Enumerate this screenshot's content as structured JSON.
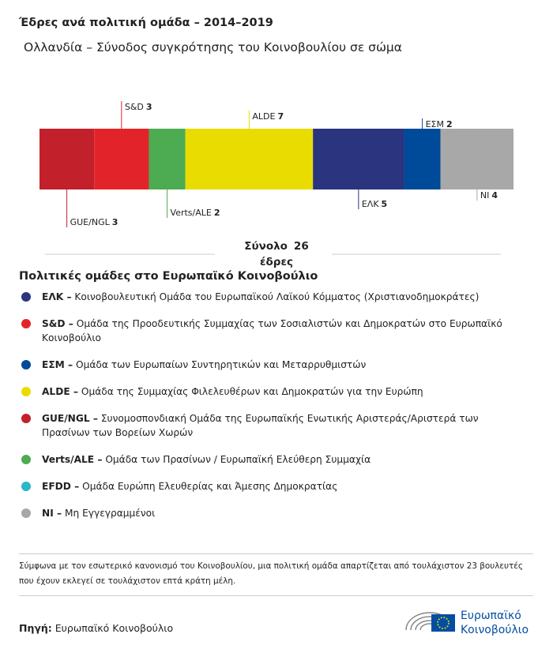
{
  "chart_data": {
    "type": "stacked-bar",
    "title": "Έδρες ανά πολιτική ομάδα – 2014–2019",
    "subtitle": "Ολλανδία – Σύνοδος συγκρότησης του Κοινοβουλίου σε σώμα",
    "categories": [
      "GUE/NGL",
      "S&D",
      "Verts/ALE",
      "ALDE",
      "ΕΛΚ",
      "ΕΣΜ",
      "NI"
    ],
    "values": [
      3,
      3,
      2,
      7,
      5,
      2,
      4
    ],
    "colors": [
      "#c2202b",
      "#e3232a",
      "#4dab52",
      "#e8dc00",
      "#2b347f",
      "#004a9a",
      "#a8a8a8"
    ],
    "total_label": "Σύνολο",
    "total": 26,
    "total_unit": "έδρες"
  },
  "legend": {
    "title": "Πολιτικές ομάδες στο Ευρωπαϊκό Κοινοβούλιο",
    "items": [
      {
        "abbr": "ΕΛΚ –",
        "text": "Κοινοβουλευτική Ομάδα του Ευρωπαϊκού Λαϊκού Κόμματος (Χριστιανοδημοκράτες)",
        "color": "#2b347f"
      },
      {
        "abbr": "S&D –",
        "text": "Ομάδα της Προοδευτικής Συμμαχίας των Σοσιαλιστών και Δημοκρατών στο Ευρωπαϊκό Κοινοβούλιο",
        "color": "#e3232a"
      },
      {
        "abbr": "ΕΣΜ –",
        "text": "Ομάδα των Ευρωπαίων Συντηρητικών και Μεταρρυθμιστών",
        "color": "#004a9a"
      },
      {
        "abbr": "ALDE –",
        "text": "Ομάδα της Συμμαχίας Φιλελευθέρων και Δημοκρατών για την Ευρώπη",
        "color": "#e8dc00"
      },
      {
        "abbr": "GUE/NGL –",
        "text": "Συνομοσπονδιακή Ομάδα της Ευρωπαϊκής Ενωτικής Αριστεράς/Αριστερά των Πρασίνων των Βορείων Χωρών",
        "color": "#c2202b"
      },
      {
        "abbr": "Verts/ALE –",
        "text": "Ομάδα των Πρασίνων / Ευρωπαϊκή Ελεύθερη Συμμαχία",
        "color": "#4dab52"
      },
      {
        "abbr": "EFDD –",
        "text": "Ομάδα Ευρώπη Ελευθερίας και Άμεσης Δημοκρατίας",
        "color": "#2bb7c9"
      },
      {
        "abbr": "NI –",
        "text": "Μη Εγγεγραμμένοι",
        "color": "#a8a8a8"
      }
    ]
  },
  "footnote": "Σύμφωνα με τον εσωτερικό κανονισμό του Κοινοβουλίου, μια πολιτική ομάδα απαρτίζεται από τουλάχιστον 23 βουλευτές που έχουν εκλεγεί σε τουλάχιστον επτά κράτη μέλη.",
  "source": {
    "label": "Πηγή:",
    "text": "Ευρωπαϊκό Κοινοβούλιο"
  },
  "logo": {
    "line1": "Ευρωπαϊκό",
    "line2": "Κοινοβούλιο"
  }
}
